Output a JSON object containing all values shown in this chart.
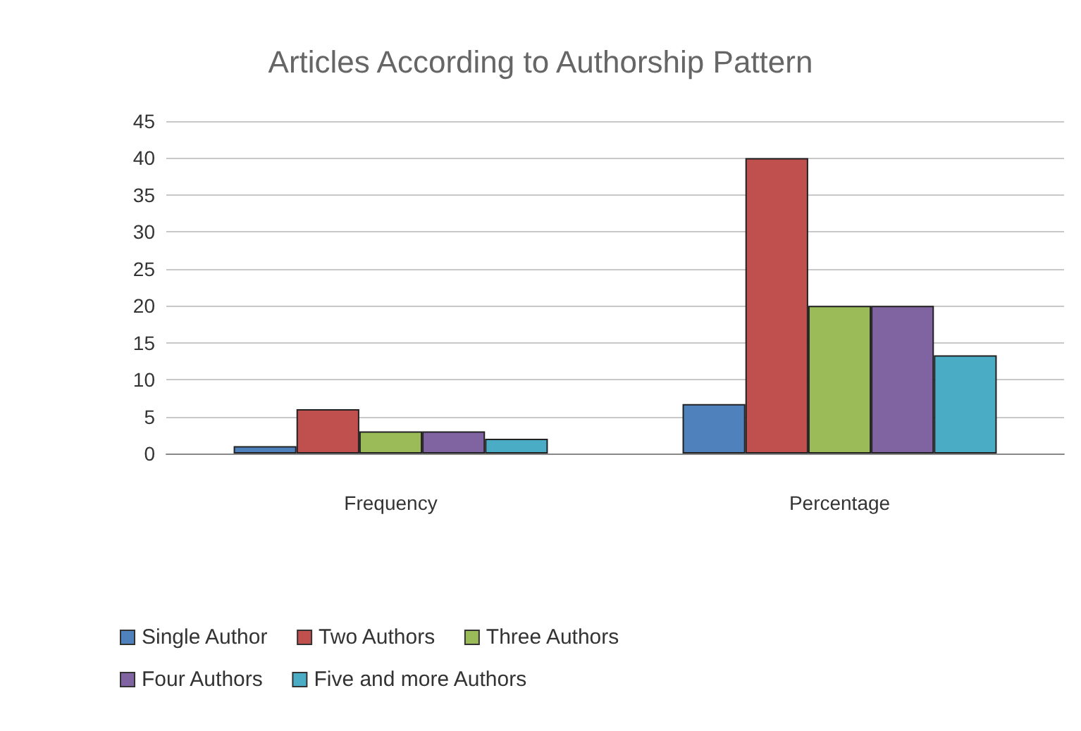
{
  "chart_data": {
    "type": "bar",
    "title": "Articles According to Authorship Pattern",
    "categories": [
      "Frequency",
      "Percentage"
    ],
    "series": [
      {
        "name": "Single Author",
        "color": "#4f81bd",
        "values": [
          1,
          6.7
        ]
      },
      {
        "name": "Two Authors",
        "color": "#c0504d",
        "values": [
          6,
          40
        ]
      },
      {
        "name": "Three Authors",
        "color": "#9bbb59",
        "values": [
          3,
          20
        ]
      },
      {
        "name": "Four Authors",
        "color": "#8064a2",
        "values": [
          3,
          20
        ]
      },
      {
        "name": "Five and more Authors",
        "color": "#4bacc6",
        "values": [
          2,
          13.3
        ]
      }
    ],
    "ylim": [
      0,
      45
    ],
    "yticks": [
      0,
      5,
      10,
      15,
      20,
      25,
      30,
      35,
      40,
      45
    ],
    "grid": "y",
    "legend": "bottom"
  }
}
